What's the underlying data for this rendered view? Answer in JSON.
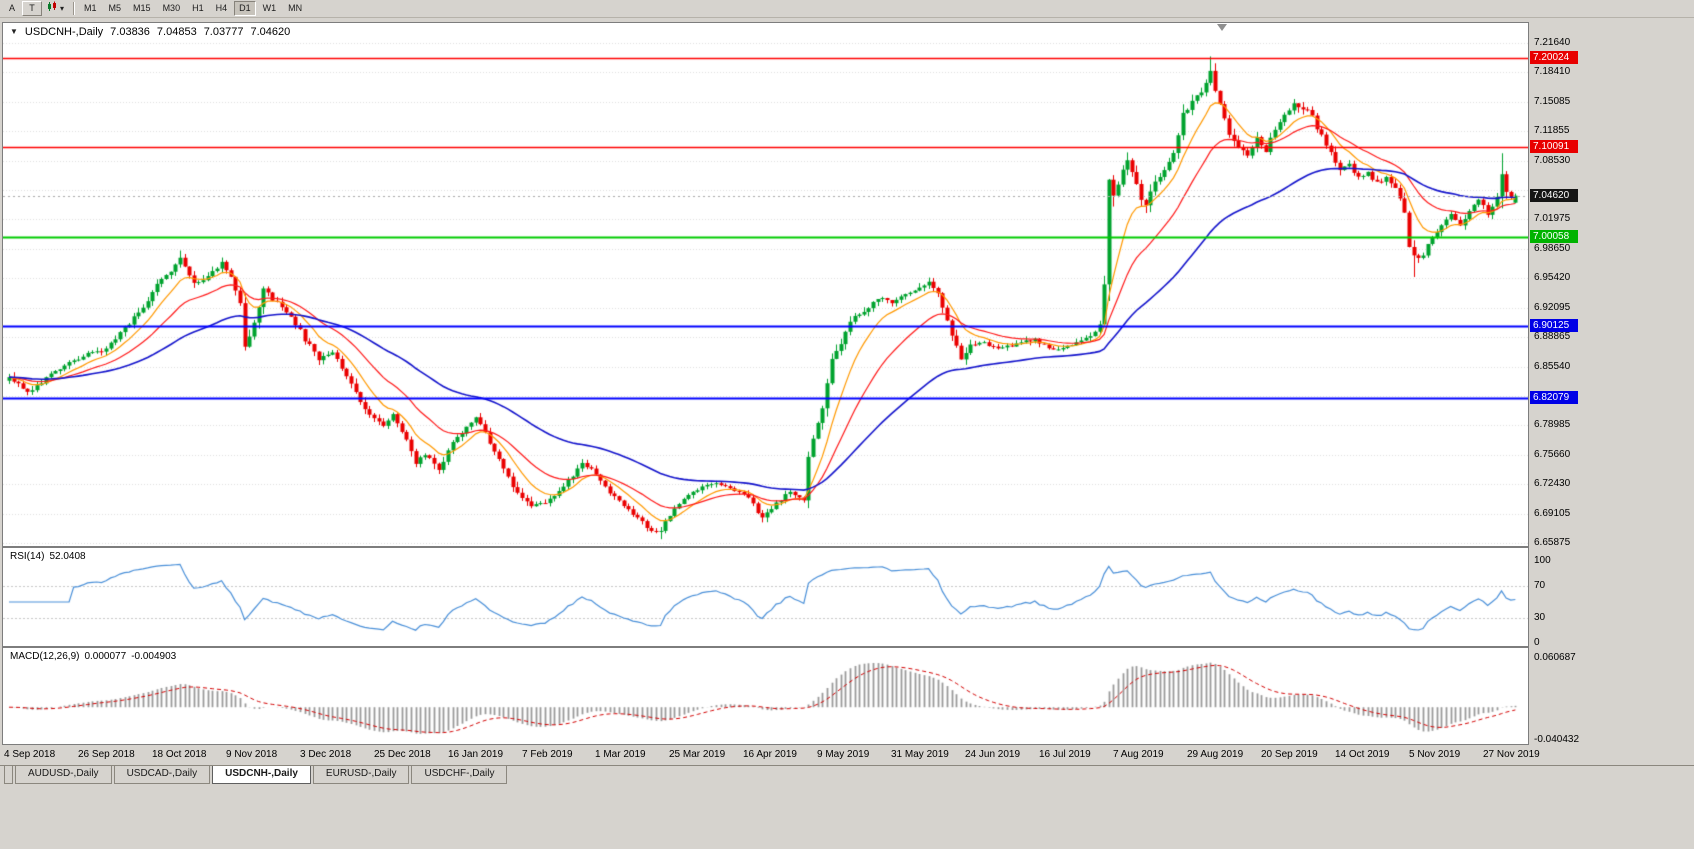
{
  "colors": {
    "chrome": "#d6d3ce",
    "panel_bg": "#ffffff",
    "panel_border": "#7d7d7d",
    "grid": "#dedede",
    "up": "#00a32e",
    "down": "#ea0000",
    "ma_fast": "#ff9900",
    "ma_mid": "#ff1a1a",
    "ma_slow": "#1414cc",
    "rsi_line": "#4a90d9",
    "macd_hist": "#9a9a9a",
    "macd_signal": "#d40000",
    "hline_red": "#ff0000",
    "hline_green": "#00cc00",
    "hline_blue": "#0000ff",
    "bid_line": "#a8a8a8"
  },
  "toolbar": {
    "left_buttons": [
      {
        "id": "arrow-tool",
        "label": "A"
      },
      {
        "id": "text-tool",
        "label": "T"
      }
    ],
    "chart_type_dropdown": {
      "arrow": "▾"
    },
    "timeframes": [
      {
        "label": "M1",
        "active": false
      },
      {
        "label": "M5",
        "active": false
      },
      {
        "label": "M15",
        "active": false
      },
      {
        "label": "M30",
        "active": false
      },
      {
        "label": "H1",
        "active": false
      },
      {
        "label": "H4",
        "active": false
      },
      {
        "label": "D1",
        "active": true
      },
      {
        "label": "W1",
        "active": false
      },
      {
        "label": "MN",
        "active": false
      }
    ]
  },
  "chart": {
    "title": "USDCNH-,Daily",
    "ohlc": {
      "open": "7.03836",
      "high": "7.04853",
      "low": "7.03777",
      "close": "7.04620"
    }
  },
  "price_axis": {
    "labels": [
      {
        "text": "7.21640",
        "value": 7.2164
      },
      {
        "text": "7.18410",
        "value": 7.1841
      },
      {
        "text": "7.15085",
        "value": 7.15085
      },
      {
        "text": "7.11855",
        "value": 7.11855
      },
      {
        "text": "7.08530",
        "value": 7.0853
      },
      {
        "text": "7.01975",
        "value": 7.01975
      },
      {
        "text": "6.98650",
        "value": 6.9865
      },
      {
        "text": "6.95420",
        "value": 6.9542
      },
      {
        "text": "6.92095",
        "value": 6.92095
      },
      {
        "text": "6.88865",
        "value": 6.88865
      },
      {
        "text": "6.85540",
        "value": 6.8554
      },
      {
        "text": "6.78985",
        "value": 6.78985
      },
      {
        "text": "6.75660",
        "value": 6.7566
      },
      {
        "text": "6.72430",
        "value": 6.7243
      },
      {
        "text": "6.69105",
        "value": 6.69105
      },
      {
        "text": "6.65875",
        "value": 6.65875
      }
    ],
    "tags": [
      {
        "text": "7.20024",
        "value": 7.20024,
        "bg": "#e80000"
      },
      {
        "text": "7.10091",
        "value": 7.10091,
        "bg": "#e80000"
      },
      {
        "text": "7.04620",
        "value": 7.0462,
        "bg": "#151515"
      },
      {
        "text": "7.00058",
        "value": 7.00058,
        "bg": "#00b300"
      },
      {
        "text": "6.90125",
        "value": 6.90125,
        "bg": "#0000e6"
      },
      {
        "text": "6.82079",
        "value": 6.82079,
        "bg": "#0000e6"
      }
    ]
  },
  "hlines": [
    {
      "value": 7.20024,
      "color": "#ff0000",
      "width": 1.5
    },
    {
      "value": 7.10091,
      "color": "#ff0000",
      "width": 1.5
    },
    {
      "value": 7.00058,
      "color": "#00cc00",
      "width": 2
    },
    {
      "value": 6.90125,
      "color": "#0000ff",
      "width": 2
    },
    {
      "value": 6.82079,
      "color": "#0000ff",
      "width": 2
    }
  ],
  "rsi": {
    "label": "RSI(14)",
    "value": "52.0408",
    "levels": [
      "100",
      "70",
      "30",
      "0"
    ],
    "level_values": [
      100,
      70,
      30,
      0
    ],
    "dotted_levels": [
      70,
      30
    ]
  },
  "macd": {
    "label": "MACD(12,26,9)",
    "value_main": "0.000077",
    "value_signal": "-0.004903",
    "axis_labels": [
      "0.060687",
      "-0.040432"
    ],
    "axis_values": [
      0.060687,
      -0.040432
    ]
  },
  "date_axis": [
    "4 Sep 2018",
    "26 Sep 2018",
    "18 Oct 2018",
    "9 Nov 2018",
    "3 Dec 2018",
    "25 Dec 2018",
    "16 Jan 2019",
    "7 Feb 2019",
    "1 Mar 2019",
    "25 Mar 2019",
    "16 Apr 2019",
    "9 May 2019",
    "31 May 2019",
    "24 Jun 2019",
    "16 Jul 2019",
    "7 Aug 2019",
    "29 Aug 2019",
    "20 Sep 2019",
    "14 Oct 2019",
    "5 Nov 2019",
    "27 Nov 2019"
  ],
  "tabs": [
    {
      "label": "AUDUSD-,Daily",
      "active": false
    },
    {
      "label": "USDCAD-,Daily",
      "active": false
    },
    {
      "label": "USDCNH-,Daily",
      "active": true
    },
    {
      "label": "EURUSD-,Daily",
      "active": false
    },
    {
      "label": "USDCHF-,Daily",
      "active": false
    }
  ],
  "chart_data": {
    "type": "candlestick",
    "symbol": "USDCNH-",
    "timeframe": "Daily",
    "visible_price_range": [
      6.6554,
      7.2388
    ],
    "num_candles": 327,
    "ticks_every": 16,
    "gridline_values": [
      7.2164,
      7.1841,
      7.15085,
      7.11855,
      7.0853,
      7.05205,
      7.01975,
      6.9865,
      6.9542,
      6.92095,
      6.88865,
      6.8554,
      6.8231,
      6.78985,
      6.7566,
      6.7243,
      6.69105,
      6.65875
    ],
    "moving_averages": [
      {
        "period": 9,
        "color": "#ff9900"
      },
      {
        "period": 21,
        "color": "#ff1a1a"
      },
      {
        "period": 55,
        "color": "#1414cc"
      }
    ],
    "anchors": [
      [
        0,
        6.845,
        0.01
      ],
      [
        4,
        6.828,
        0.01
      ],
      [
        8,
        6.842,
        0.009
      ],
      [
        12,
        6.856,
        0.009
      ],
      [
        16,
        6.868,
        0.008
      ],
      [
        20,
        6.872,
        0.008
      ],
      [
        24,
        6.892,
        0.009
      ],
      [
        28,
        6.916,
        0.01
      ],
      [
        32,
        6.946,
        0.011
      ],
      [
        35,
        6.962,
        0.011
      ],
      [
        37,
        6.976,
        0.01
      ],
      [
        40,
        6.946,
        0.012
      ],
      [
        43,
        6.958,
        0.01
      ],
      [
        46,
        6.971,
        0.01
      ],
      [
        48,
        6.954,
        0.011
      ],
      [
        50,
        6.928,
        0.012
      ],
      [
        51,
        6.88,
        0.02
      ],
      [
        53,
        6.906,
        0.013
      ],
      [
        55,
        6.94,
        0.014
      ],
      [
        58,
        6.926,
        0.01
      ],
      [
        61,
        6.912,
        0.009
      ],
      [
        64,
        6.886,
        0.012
      ],
      [
        67,
        6.863,
        0.01
      ],
      [
        70,
        6.873,
        0.009
      ],
      [
        73,
        6.846,
        0.01
      ],
      [
        76,
        6.816,
        0.012
      ],
      [
        79,
        6.797,
        0.01
      ],
      [
        81,
        6.788,
        0.009
      ],
      [
        83,
        6.801,
        0.009
      ],
      [
        86,
        6.776,
        0.01
      ],
      [
        88,
        6.746,
        0.013
      ],
      [
        90,
        6.757,
        0.01
      ],
      [
        93,
        6.743,
        0.012
      ],
      [
        96,
        6.769,
        0.01
      ],
      [
        99,
        6.789,
        0.009
      ],
      [
        101,
        6.799,
        0.009
      ],
      [
        104,
        6.771,
        0.01
      ],
      [
        107,
        6.743,
        0.01
      ],
      [
        110,
        6.714,
        0.011
      ],
      [
        113,
        6.701,
        0.01
      ],
      [
        116,
        6.703,
        0.009
      ],
      [
        120,
        6.722,
        0.009
      ],
      [
        124,
        6.746,
        0.009
      ],
      [
        127,
        6.737,
        0.008
      ],
      [
        130,
        6.714,
        0.009
      ],
      [
        133,
        6.699,
        0.009
      ],
      [
        136,
        6.687,
        0.009
      ],
      [
        139,
        6.673,
        0.01
      ],
      [
        141,
        6.671,
        0.009
      ],
      [
        143,
        6.691,
        0.009
      ],
      [
        145,
        6.703,
        0.008
      ],
      [
        148,
        6.716,
        0.008
      ],
      [
        152,
        6.726,
        0.007
      ],
      [
        156,
        6.719,
        0.007
      ],
      [
        160,
        6.709,
        0.008
      ],
      [
        163,
        6.687,
        0.011
      ],
      [
        166,
        6.703,
        0.008
      ],
      [
        169,
        6.716,
        0.007
      ],
      [
        172,
        6.706,
        0.008
      ],
      [
        173,
        6.76,
        0.022
      ],
      [
        175,
        6.792,
        0.015
      ],
      [
        176,
        6.812,
        0.014
      ],
      [
        178,
        6.868,
        0.02
      ],
      [
        180,
        6.882,
        0.013
      ],
      [
        182,
        6.906,
        0.012
      ],
      [
        185,
        6.916,
        0.01
      ],
      [
        188,
        6.932,
        0.01
      ],
      [
        191,
        6.926,
        0.009
      ],
      [
        194,
        6.936,
        0.009
      ],
      [
        197,
        6.945,
        0.01
      ],
      [
        199,
        6.951,
        0.01
      ],
      [
        201,
        6.936,
        0.01
      ],
      [
        203,
        6.905,
        0.012
      ],
      [
        206,
        6.864,
        0.013
      ],
      [
        208,
        6.879,
        0.01
      ],
      [
        211,
        6.882,
        0.008
      ],
      [
        214,
        6.874,
        0.008
      ],
      [
        218,
        6.881,
        0.008
      ],
      [
        222,
        6.887,
        0.008
      ],
      [
        224,
        6.879,
        0.008
      ],
      [
        227,
        6.873,
        0.007
      ],
      [
        230,
        6.881,
        0.008
      ],
      [
        233,
        6.886,
        0.008
      ],
      [
        236,
        6.901,
        0.01
      ],
      [
        237,
        6.943,
        0.018
      ],
      [
        238,
        7.058,
        0.045
      ],
      [
        239,
        7.052,
        0.03
      ],
      [
        240,
        7.062,
        0.025
      ],
      [
        242,
        7.082,
        0.02
      ],
      [
        244,
        7.056,
        0.018
      ],
      [
        246,
        7.034,
        0.016
      ],
      [
        248,
        7.061,
        0.015
      ],
      [
        250,
        7.072,
        0.014
      ],
      [
        252,
        7.092,
        0.014
      ],
      [
        254,
        7.136,
        0.018
      ],
      [
        256,
        7.152,
        0.015
      ],
      [
        258,
        7.163,
        0.013
      ],
      [
        260,
        7.186,
        0.016
      ],
      [
        262,
        7.146,
        0.016
      ],
      [
        264,
        7.116,
        0.014
      ],
      [
        266,
        7.102,
        0.012
      ],
      [
        268,
        7.088,
        0.012
      ],
      [
        270,
        7.112,
        0.011
      ],
      [
        272,
        7.097,
        0.011
      ],
      [
        274,
        7.121,
        0.011
      ],
      [
        276,
        7.136,
        0.011
      ],
      [
        278,
        7.148,
        0.011
      ],
      [
        280,
        7.144,
        0.012
      ],
      [
        282,
        7.134,
        0.012
      ],
      [
        284,
        7.112,
        0.013
      ],
      [
        286,
        7.096,
        0.012
      ],
      [
        288,
        7.072,
        0.013
      ],
      [
        290,
        7.082,
        0.011
      ],
      [
        292,
        7.066,
        0.01
      ],
      [
        294,
        7.071,
        0.009
      ],
      [
        296,
        7.061,
        0.009
      ],
      [
        298,
        7.066,
        0.009
      ],
      [
        300,
        7.056,
        0.01
      ],
      [
        302,
        7.026,
        0.013
      ],
      [
        303,
        6.992,
        0.014
      ],
      [
        304,
        6.977,
        0.016
      ],
      [
        306,
        6.981,
        0.012
      ],
      [
        308,
        7.001,
        0.01
      ],
      [
        310,
        7.011,
        0.009
      ],
      [
        312,
        7.026,
        0.009
      ],
      [
        314,
        7.012,
        0.009
      ],
      [
        316,
        7.031,
        0.009
      ],
      [
        318,
        7.041,
        0.009
      ],
      [
        320,
        7.026,
        0.009
      ],
      [
        322,
        7.043,
        0.01
      ],
      [
        323,
        7.069,
        0.026
      ],
      [
        324,
        7.052,
        0.014
      ],
      [
        325,
        7.042,
        0.01
      ],
      [
        326,
        7.0462,
        0.011
      ]
    ],
    "extremes": [
      [
        37,
        "h",
        6.985
      ],
      [
        141,
        "l",
        6.663
      ],
      [
        260,
        "h",
        7.2015
      ],
      [
        304,
        "l",
        6.9555
      ],
      [
        323,
        "h",
        7.0935
      ]
    ],
    "last_candle": {
      "open": 7.03836,
      "high": 7.04853,
      "low": 7.03777,
      "close": 7.0462
    }
  }
}
